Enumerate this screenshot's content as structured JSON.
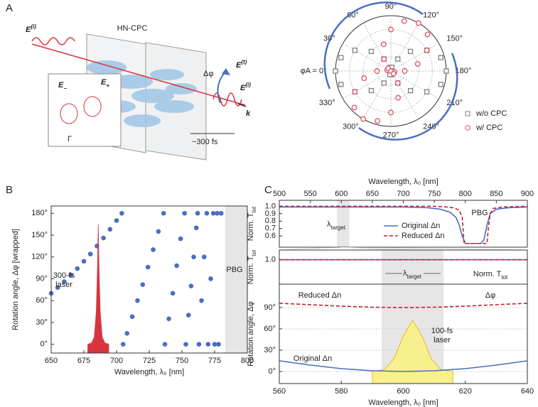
{
  "panel_labels": [
    "A",
    "B",
    "C"
  ],
  "illustration": {
    "device": "HN-CPC",
    "delta_phi": "Δφ",
    "pulse_width": "~300 fs",
    "wavevector": "k",
    "gamma": "Γ",
    "e_in": {
      "text": "E",
      "sup": "(i)"
    },
    "e_t": {
      "text": "E",
      "sup": "(t)"
    },
    "e_r": {
      "text": "E",
      "sup": "(i)"
    },
    "e_minus": {
      "text": "E",
      "sub": "−"
    },
    "e_plus": {
      "text": "E",
      "sub": "+"
    }
  },
  "chart_data": [
    {
      "type": "polar",
      "rlim": [
        0,
        1
      ],
      "rticks": [
        0.25,
        0.5,
        0.75,
        1
      ],
      "thetaticks": [
        {
          "value": 0,
          "label": "φA = 0°"
        },
        {
          "value": 30,
          "label": "30°"
        },
        {
          "value": 60,
          "label": "60°"
        },
        {
          "value": 90,
          "label": "90°"
        },
        {
          "value": 120,
          "label": "120°"
        },
        {
          "value": 150,
          "label": "150°"
        },
        {
          "value": 180,
          "label": "180°"
        },
        {
          "value": 210,
          "label": "210°"
        },
        {
          "value": 240,
          "label": "240°"
        },
        {
          "value": 270,
          "label": "270°"
        },
        {
          "value": 300,
          "label": "300°"
        },
        {
          "value": 330,
          "label": "330°"
        }
      ],
      "series": [
        {
          "name": "w/o CPC",
          "color": "#7f7f7f",
          "marker": "square",
          "x": [
            0,
            15,
            30,
            45,
            60,
            75,
            90,
            105,
            120,
            135,
            150,
            165,
            180,
            195,
            210,
            225,
            240,
            255,
            270,
            285,
            300,
            315,
            330,
            345
          ],
          "values": [
            1,
            0.933,
            0.75,
            0.5,
            0.25,
            0.067,
            0,
            0.067,
            0.25,
            0.5,
            0.75,
            0.933,
            1,
            0.933,
            0.75,
            0.5,
            0.25,
            0.067,
            0,
            0.067,
            0.25,
            0.5,
            0.75,
            0.933
          ]
        },
        {
          "name": "w/ CPC",
          "color": "#e0505a",
          "marker": "circle",
          "x": [
            0,
            15,
            30,
            45,
            60,
            75,
            90,
            105,
            120,
            135,
            150,
            165,
            180,
            195,
            210,
            225,
            240,
            255,
            270,
            285,
            300,
            315,
            330,
            345
          ],
          "values": [
            0.25,
            0.067,
            0,
            0.067,
            0.25,
            0.5,
            0.75,
            0.933,
            1,
            0.933,
            0.75,
            0.5,
            0.25,
            0.067,
            0,
            0.067,
            0.25,
            0.5,
            0.75,
            0.933,
            1,
            0.933,
            0.75,
            0.5
          ]
        }
      ]
    },
    {
      "type": "scatter",
      "xlabel": "Wavelength, λ₀ [nm]",
      "ylabel": "Rotation angle, Δφ [wrapped]",
      "xlim": [
        650,
        800
      ],
      "xticks": [
        650,
        675,
        700,
        725,
        750,
        775,
        800
      ],
      "ylim": [
        -12,
        190
      ],
      "yticks": [
        {
          "value": 0,
          "label": "0°"
        },
        {
          "value": 30,
          "label": "30°"
        },
        {
          "value": 60,
          "label": "60°"
        },
        {
          "value": 90,
          "label": "90°"
        },
        {
          "value": 120,
          "label": "120°"
        },
        {
          "value": 150,
          "label": "150°"
        },
        {
          "value": 180,
          "label": "180°"
        }
      ],
      "band": [
        783,
        800
      ],
      "annotations": [
        "PBG",
        "300-fs",
        "laser"
      ],
      "series": [
        {
          "kind": "dots",
          "color": "#4a6ec2",
          "x": [
            650,
            655,
            660,
            665,
            670,
            675,
            680,
            685,
            690,
            695,
            700,
            704,
            705,
            708,
            712,
            716,
            720,
            724,
            728,
            732,
            736,
            737,
            740,
            743,
            746,
            749,
            752,
            753,
            755,
            757,
            759,
            761,
            762,
            763,
            765,
            767,
            769,
            770,
            772,
            774,
            775,
            777,
            778,
            780
          ],
          "values": [
            70,
            78,
            86,
            95,
            104,
            114,
            124,
            135,
            146,
            158,
            170,
            180,
            0,
            15,
            38,
            60,
            82,
            106,
            130,
            155,
            180,
            0,
            35,
            70,
            108,
            145,
            180,
            0,
            40,
            80,
            120,
            160,
            180,
            0,
            60,
            120,
            180,
            0,
            90,
            180,
            0,
            180,
            0,
            180
          ]
        },
        {
          "kind": "area",
          "color": "#d8343f",
          "x": [
            678,
            681,
            683,
            684.5,
            685.5,
            686,
            686.5,
            687.5,
            689,
            691,
            694
          ],
          "values": [
            0,
            2,
            10,
            45,
            110,
            165,
            110,
            45,
            10,
            2,
            0
          ]
        }
      ]
    },
    {
      "type": "line",
      "xlabel": "Wavelength, λ₀ [nm]",
      "xaxis_position": "top",
      "ylabel": {
        "text": "Norm. T",
        "sub": "tot"
      },
      "xlim": [
        500,
        900
      ],
      "xticks": [
        500,
        550,
        600,
        650,
        700,
        750,
        800,
        850,
        900
      ],
      "ylim": [
        0.45,
        1.08
      ],
      "yticks": [
        0.6,
        0.7,
        0.8,
        0.9,
        {
          "value": 1,
          "label": "1.0"
        }
      ],
      "band": [
        593,
        613
      ],
      "annotations": [
        "PBG",
        {
          "text": "λ",
          "sub": "target"
        }
      ],
      "series": [
        {
          "name": "Original Δn",
          "color": "#4a6ec2",
          "dash": false,
          "x": [
            500,
            550,
            600,
            650,
            700,
            740,
            760,
            775,
            785,
            790,
            795,
            800,
            825,
            830,
            835,
            840,
            850,
            870,
            900
          ],
          "values": [
            0.99,
            0.99,
            0.99,
            0.99,
            0.99,
            0.98,
            0.96,
            0.92,
            0.85,
            0.75,
            0.6,
            0.5,
            0.5,
            0.55,
            0.75,
            0.9,
            0.96,
            0.98,
            0.99
          ]
        },
        {
          "name": "Reduced Δn",
          "color": "#c0202c",
          "dash": true,
          "x": [
            500,
            600,
            700,
            750,
            770,
            780,
            790,
            795,
            798,
            835,
            837,
            840,
            845,
            860,
            900
          ],
          "values": [
            1,
            1,
            1,
            1,
            0.99,
            0.98,
            0.95,
            0.85,
            0.5,
            0.5,
            0.7,
            0.9,
            0.97,
            0.99,
            1
          ]
        }
      ]
    },
    {
      "type": "line",
      "ylabel": {
        "text": "Norm. T",
        "sub": "tot"
      },
      "xlim": [
        560,
        640
      ],
      "ylim": [
        0.9,
        1.04
      ],
      "yticks": [
        {
          "value": 1,
          "label": "1.0"
        }
      ],
      "band": [
        593,
        613
      ],
      "annotations": [
        {
          "text": "λ",
          "sub": "target"
        },
        {
          "text": "Norm. T",
          "sub": "tot"
        }
      ],
      "series": [
        {
          "color": "#4a6ec2",
          "dash": false,
          "x": [
            560,
            640
          ],
          "values": [
            1,
            1
          ]
        },
        {
          "color": "#c0202c",
          "dash": true,
          "x": [
            560,
            640
          ],
          "values": [
            1,
            1
          ]
        }
      ]
    },
    {
      "type": "line",
      "xlabel": "Wavelength, λ₀ [nm]",
      "ylabel": "Rotation angle, Δφ",
      "grid": true,
      "xlim": [
        560,
        640
      ],
      "xticks": [
        560,
        580,
        600,
        620,
        640
      ],
      "ylim": [
        -17,
        123
      ],
      "yticks": [
        {
          "value": 0,
          "label": "0°"
        },
        {
          "value": 30,
          "label": "30°"
        },
        {
          "value": 60,
          "label": "60°"
        },
        {
          "value": 90,
          "label": "90°"
        }
      ],
      "band": [
        593,
        613
      ],
      "annotations": [
        "Reduced Δn",
        "Original Δn",
        "Δφ",
        "100-fs",
        "laser"
      ],
      "series": [
        {
          "kind": "area",
          "color": "#f8ef8f",
          "x": [
            590,
            594,
            597,
            600,
            603,
            606,
            609,
            612,
            616
          ],
          "values": [
            0,
            3,
            18,
            50,
            72,
            50,
            18,
            3,
            0
          ]
        },
        {
          "color": "#4a6ec2",
          "dash": false,
          "x": [
            560,
            570,
            580,
            590,
            600,
            610,
            620,
            630,
            640
          ],
          "values": [
            15,
            9,
            4,
            1,
            0,
            1,
            4,
            9,
            15
          ]
        },
        {
          "color": "#c0202c",
          "dash": true,
          "x": [
            560,
            570,
            580,
            590,
            600,
            610,
            620,
            630,
            640
          ],
          "values": [
            96,
            94,
            92,
            90.5,
            90,
            90.5,
            92,
            94,
            96
          ]
        }
      ]
    }
  ]
}
